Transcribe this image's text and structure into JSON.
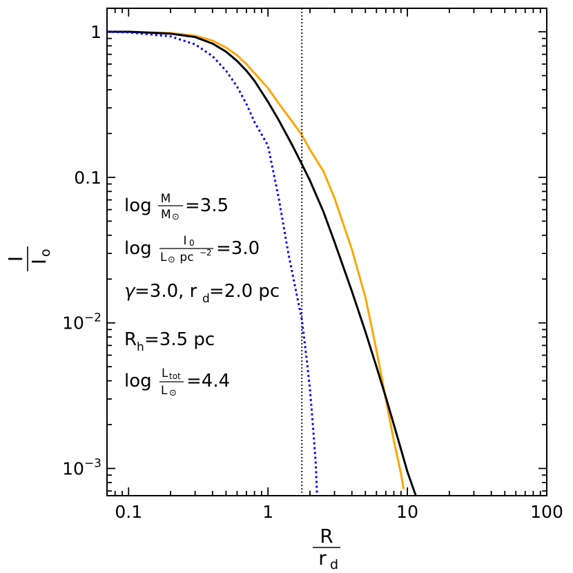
{
  "chart_data": {
    "type": "line",
    "xscale": "log",
    "yscale": "log",
    "xlim": [
      0.07,
      100
    ],
    "ylim": [
      0.00065,
      1.45
    ],
    "x_ticks": [
      {
        "value": 0.1,
        "label": "0.1"
      },
      {
        "value": 1,
        "label": "1"
      },
      {
        "value": 10,
        "label": "10"
      },
      {
        "value": 100,
        "label": "100"
      }
    ],
    "y_ticks": [
      {
        "value": 1,
        "label": "1"
      },
      {
        "value": 0.1,
        "label": "0.1"
      },
      {
        "value": 0.01,
        "label": "10",
        "exp": "−2"
      },
      {
        "value": 0.001,
        "label": "10",
        "exp": "−3"
      }
    ],
    "xlabel": {
      "num": "R",
      "den": "r",
      "den_sub": "d"
    },
    "ylabel": {
      "num": "I",
      "den": "I",
      "den_sub": "o"
    },
    "vline": {
      "x": 1.75,
      "style": "dotted",
      "color": "#000000"
    },
    "series": [
      {
        "color": "#ffa500",
        "style": "solid",
        "points": [
          [
            0.07,
            1.0
          ],
          [
            0.1,
            1.0
          ],
          [
            0.2,
            0.98
          ],
          [
            0.3,
            0.94
          ],
          [
            0.4,
            0.87
          ],
          [
            0.5,
            0.78
          ],
          [
            0.6,
            0.69
          ],
          [
            0.7,
            0.6
          ],
          [
            0.8,
            0.52
          ],
          [
            1.0,
            0.41
          ],
          [
            1.2,
            0.32
          ],
          [
            1.5,
            0.24
          ],
          [
            1.75,
            0.195
          ],
          [
            2.0,
            0.155
          ],
          [
            2.5,
            0.11
          ],
          [
            3.0,
            0.072
          ],
          [
            4.0,
            0.032
          ],
          [
            5.0,
            0.015
          ],
          [
            6.0,
            0.0065
          ],
          [
            7.0,
            0.003
          ],
          [
            8.0,
            0.00155
          ],
          [
            9.0,
            0.00092
          ],
          [
            9.4,
            0.00072
          ]
        ]
      },
      {
        "color": "#000000",
        "style": "solid",
        "points": [
          [
            0.07,
            1.0
          ],
          [
            0.1,
            1.0
          ],
          [
            0.2,
            0.97
          ],
          [
            0.3,
            0.92
          ],
          [
            0.4,
            0.83
          ],
          [
            0.5,
            0.73
          ],
          [
            0.6,
            0.63
          ],
          [
            0.7,
            0.54
          ],
          [
            0.8,
            0.46
          ],
          [
            1.0,
            0.33
          ],
          [
            1.2,
            0.245
          ],
          [
            1.5,
            0.165
          ],
          [
            1.75,
            0.123
          ],
          [
            2.0,
            0.095
          ],
          [
            2.5,
            0.058
          ],
          [
            3.0,
            0.036
          ],
          [
            4.0,
            0.0165
          ],
          [
            5.0,
            0.0087
          ],
          [
            6.0,
            0.005
          ],
          [
            7.0,
            0.0031
          ],
          [
            8.0,
            0.002
          ],
          [
            9.0,
            0.00135
          ],
          [
            10.0,
            0.00095
          ],
          [
            11.5,
            0.00065
          ]
        ]
      },
      {
        "color": "#0000ff",
        "style": "dotted",
        "points": [
          [
            0.07,
            1.0
          ],
          [
            0.1,
            0.99
          ],
          [
            0.2,
            0.93
          ],
          [
            0.3,
            0.82
          ],
          [
            0.4,
            0.68
          ],
          [
            0.5,
            0.54
          ],
          [
            0.6,
            0.42
          ],
          [
            0.7,
            0.32
          ],
          [
            0.8,
            0.24
          ],
          [
            1.0,
            0.165
          ],
          [
            1.2,
            0.07
          ],
          [
            1.4,
            0.03
          ],
          [
            1.6,
            0.016
          ],
          [
            1.75,
            0.0105
          ],
          [
            1.9,
            0.0055
          ],
          [
            2.0,
            0.0035
          ],
          [
            2.1,
            0.002
          ],
          [
            2.2,
            0.0011
          ],
          [
            2.25,
            0.00065
          ]
        ]
      }
    ],
    "annotations": [
      {
        "prefix": "log ",
        "frac_num": "M",
        "frac_den": "M",
        "frac_den_sym": "⊙",
        "suffix": "=3.5"
      },
      {
        "prefix": "log ",
        "frac_num": "I",
        "frac_num_sub": "0",
        "frac_den": "L",
        "frac_den_sym": "⊙",
        "frac_den_rest": " pc",
        "frac_den_sup": "−2",
        "suffix": "=3.0"
      },
      {
        "gamma": "γ",
        "gamma_value": "=3.0, r",
        "rd_sub": "d",
        "rd_value": "=2.0 pc"
      },
      {
        "main": "R",
        "sub": "h",
        "value": "=3.5 pc"
      },
      {
        "prefix": "log ",
        "frac_num": "L",
        "frac_num_sub": "tot",
        "frac_den": "L",
        "frac_den_sym": "⊙",
        "suffix": "=4.4"
      }
    ]
  }
}
